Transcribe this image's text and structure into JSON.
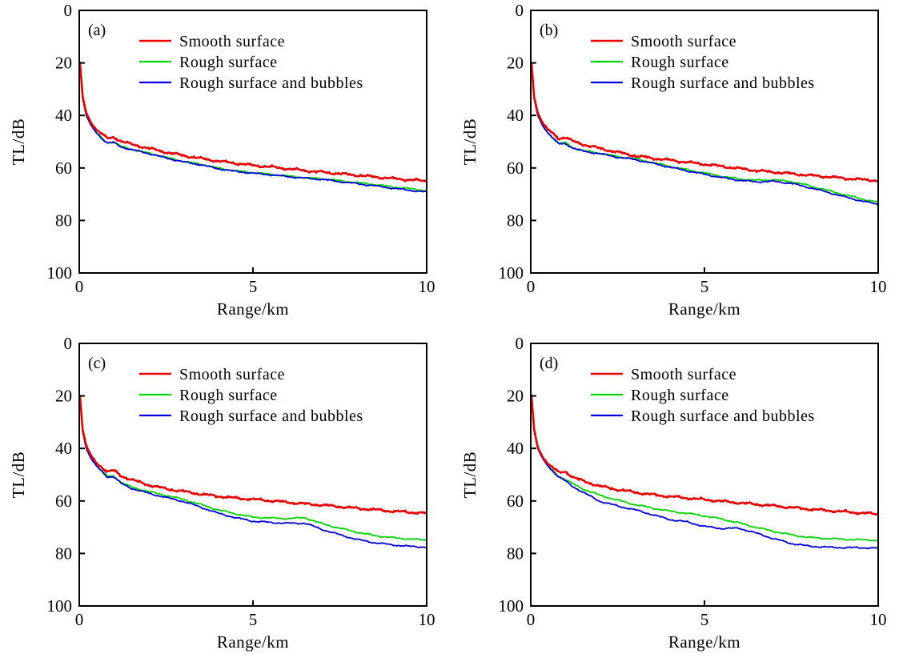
{
  "figure": {
    "background": "#ffffff",
    "axis_color": "#000000",
    "colors": {
      "red": "#ee0000",
      "green": "#00d400",
      "blue": "#0000e0"
    },
    "xlabel": "Range/km",
    "ylabel": "TL/dB",
    "legend": [
      {
        "key": "red",
        "label": "Smooth surface"
      },
      {
        "key": "green",
        "label": "Rough surface"
      },
      {
        "key": "blue",
        "label": "Rough surface and bubbles"
      }
    ]
  },
  "chart_data": [
    {
      "type": "line",
      "panel_label": "(a)",
      "xlabel": "Range/km",
      "ylabel": "TL/dB",
      "xlim": [
        0,
        10
      ],
      "ylim": [
        0,
        100
      ],
      "y_inverted": true,
      "xticks": [
        0,
        5,
        10
      ],
      "yticks": [
        0,
        20,
        40,
        60,
        80,
        100
      ],
      "grid": false,
      "legend_position": "top-left-inside",
      "x": [
        0.02,
        0.1,
        0.2,
        0.35,
        0.5,
        0.65,
        0.8,
        1.0,
        1.2,
        1.5,
        2,
        2.5,
        3,
        3.5,
        4,
        4.5,
        5,
        5.5,
        6,
        6.5,
        7,
        7.5,
        8,
        8.5,
        9,
        9.5,
        10
      ],
      "series": [
        {
          "name": "Rough surface",
          "color_key": "green",
          "values": [
            20,
            33.5,
            40,
            44,
            46.6,
            48.6,
            50.4,
            50.2,
            51.8,
            52.9,
            54.4,
            56,
            57.5,
            58.6,
            60.1,
            61.1,
            61.8,
            62.4,
            63.1,
            63.7,
            64.1,
            64.9,
            65.6,
            66.3,
            67.2,
            67.9,
            68.6
          ]
        },
        {
          "name": "Rough surface and bubbles",
          "color_key": "blue",
          "values": [
            20,
            33.5,
            40,
            44.1,
            46.7,
            48.7,
            50.5,
            50.3,
            52,
            53,
            54.5,
            56.2,
            57.7,
            58.8,
            60.3,
            61.3,
            62,
            62.6,
            63.3,
            63.9,
            64.4,
            65.2,
            66,
            66.8,
            67.7,
            68.5,
            69.2
          ]
        },
        {
          "name": "Smooth surface",
          "color_key": "red",
          "values": [
            20,
            33,
            39,
            43,
            45.5,
            47,
            48.8,
            48.3,
            49.8,
            51,
            52.5,
            54,
            55.3,
            56.4,
            57.4,
            58.2,
            59,
            59.6,
            60.3,
            61,
            61.6,
            62.2,
            62.8,
            63.4,
            64,
            64.5,
            65
          ]
        }
      ]
    },
    {
      "type": "line",
      "panel_label": "(b)",
      "xlabel": "Range/km",
      "ylabel": "TL/dB",
      "xlim": [
        0,
        10
      ],
      "ylim": [
        0,
        100
      ],
      "y_inverted": true,
      "xticks": [
        0,
        5,
        10
      ],
      "yticks": [
        0,
        20,
        40,
        60,
        80,
        100
      ],
      "grid": false,
      "legend_position": "top-left-inside",
      "x": [
        0.02,
        0.1,
        0.2,
        0.35,
        0.5,
        0.65,
        0.8,
        1.0,
        1.2,
        1.5,
        2,
        2.5,
        3,
        3.5,
        4,
        4.5,
        5,
        5.5,
        6,
        6.5,
        7,
        7.5,
        8,
        8.5,
        9,
        9.5,
        10
      ],
      "series": [
        {
          "name": "Rough surface",
          "color_key": "green",
          "values": [
            20,
            33.5,
            40,
            44,
            46.6,
            48.6,
            50.6,
            50.4,
            52.2,
            53.4,
            54.4,
            55.7,
            56.5,
            57.9,
            59.4,
            60.7,
            61.9,
            63.2,
            64.2,
            64.7,
            64.5,
            65.2,
            66.7,
            68.4,
            70.1,
            71.7,
            73.1
          ]
        },
        {
          "name": "Rough surface and bubbles",
          "color_key": "blue",
          "values": [
            20,
            33.5,
            40,
            44.1,
            46.8,
            48.8,
            50.9,
            50.7,
            52.4,
            53.6,
            54.6,
            55.9,
            56.8,
            58.2,
            59.7,
            61.1,
            62.4,
            63.7,
            64.7,
            65.3,
            65.1,
            65.9,
            67.4,
            69.1,
            70.9,
            72.5,
            73.9
          ]
        },
        {
          "name": "Smooth surface",
          "color_key": "red",
          "values": [
            20,
            33,
            39,
            43,
            45.5,
            47,
            48.8,
            48.3,
            49.8,
            51,
            52.6,
            54,
            55.4,
            56.3,
            57,
            57.8,
            58.6,
            59.4,
            60.2,
            61,
            61.6,
            62.2,
            62.8,
            63.3,
            63.9,
            64.4,
            64.8
          ]
        }
      ]
    },
    {
      "type": "line",
      "panel_label": "(c)",
      "xlabel": "Range/km",
      "ylabel": "TL/dB",
      "xlim": [
        0,
        10
      ],
      "ylim": [
        0,
        100
      ],
      "y_inverted": true,
      "xticks": [
        0,
        5,
        10
      ],
      "yticks": [
        0,
        20,
        40,
        60,
        80,
        100
      ],
      "grid": false,
      "legend_position": "top-left-inside",
      "x": [
        0.02,
        0.1,
        0.2,
        0.35,
        0.5,
        0.65,
        0.8,
        1.0,
        1.2,
        1.5,
        2,
        2.5,
        3,
        3.5,
        4,
        4.5,
        5,
        5.5,
        6,
        6.5,
        7,
        7.5,
        8,
        8.5,
        9,
        9.5,
        10
      ],
      "series": [
        {
          "name": "Rough surface",
          "color_key": "green",
          "values": [
            20,
            33.5,
            40,
            44,
            46.6,
            48.6,
            50.5,
            50.5,
            52.9,
            54.7,
            56.4,
            57.9,
            59.4,
            61.4,
            63.4,
            64.9,
            66.2,
            66.5,
            66.7,
            66.4,
            68.7,
            70.4,
            71.9,
            73.2,
            74,
            74.5,
            74.9
          ]
        },
        {
          "name": "Rough surface and bubbles",
          "color_key": "blue",
          "values": [
            20,
            33.5,
            40,
            44.1,
            46.8,
            48.8,
            50.8,
            50.8,
            53.3,
            55.2,
            57.1,
            58.7,
            60.2,
            62.4,
            64.7,
            66.4,
            67.7,
            68.2,
            68.5,
            68.5,
            70.9,
            72.9,
            74.7,
            75.9,
            76.7,
            77.3,
            77.6
          ]
        },
        {
          "name": "Smooth surface",
          "color_key": "red",
          "values": [
            20,
            33,
            39,
            43,
            45.6,
            47.1,
            48.9,
            48.4,
            50.4,
            51.9,
            53.9,
            55.4,
            56.4,
            57.4,
            58.2,
            58.9,
            59.4,
            59.9,
            60.5,
            61.1,
            61.6,
            62.2,
            62.8,
            63.3,
            63.9,
            64.3,
            64.7
          ]
        }
      ]
    },
    {
      "type": "line",
      "panel_label": "(d)",
      "xlabel": "Range/km",
      "ylabel": "TL/dB",
      "xlim": [
        0,
        10
      ],
      "ylim": [
        0,
        100
      ],
      "y_inverted": true,
      "xticks": [
        0,
        5,
        10
      ],
      "yticks": [
        0,
        20,
        40,
        60,
        80,
        100
      ],
      "grid": false,
      "legend_position": "top-left-inside",
      "x": [
        0.02,
        0.1,
        0.2,
        0.35,
        0.5,
        0.65,
        0.8,
        1.0,
        1.2,
        1.5,
        2,
        2.5,
        3,
        3.5,
        4,
        4.5,
        5,
        5.5,
        6,
        6.5,
        7,
        7.5,
        8,
        8.5,
        9,
        9.5,
        10
      ],
      "series": [
        {
          "name": "Rough surface",
          "color_key": "green",
          "values": [
            20,
            33.5,
            40,
            44,
            46.6,
            48.6,
            50.5,
            51.8,
            53.4,
            55.4,
            57.9,
            59.7,
            61.4,
            62.7,
            63.9,
            64.7,
            65.7,
            66.9,
            68.4,
            70.1,
            71.6,
            72.9,
            73.9,
            74.3,
            74.6,
            74.8,
            75
          ]
        },
        {
          "name": "Rough surface and bubbles",
          "color_key": "blue",
          "values": [
            20,
            33.5,
            40,
            44.1,
            46.8,
            48.8,
            50.9,
            52.4,
            54.4,
            56.7,
            60.2,
            61.9,
            63.4,
            65.2,
            67.1,
            68,
            69.7,
            70.5,
            70.4,
            72.3,
            74.4,
            76.2,
            77.2,
            77.6,
            77.8,
            77.8,
            78
          ]
        },
        {
          "name": "Smooth surface",
          "color_key": "red",
          "values": [
            20,
            33,
            39.5,
            43.4,
            45.9,
            47.4,
            49.3,
            48.8,
            50.8,
            52.4,
            54.4,
            55.7,
            56.7,
            57.6,
            58.3,
            58.9,
            59.5,
            60.1,
            60.7,
            61.3,
            61.9,
            62.5,
            63.1,
            63.6,
            64.1,
            64.6,
            65
          ]
        }
      ]
    }
  ]
}
